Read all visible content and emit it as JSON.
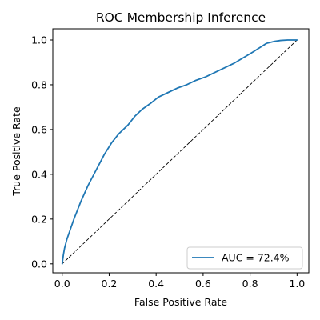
{
  "chart_data": {
    "type": "line",
    "title": "ROC Membership Inference",
    "xlabel": "False Positive Rate",
    "ylabel": "True Positive Rate",
    "xlim": [
      -0.04,
      1.05
    ],
    "ylim": [
      -0.04,
      1.05
    ],
    "xticks": [
      0.0,
      0.2,
      0.4,
      0.6,
      0.8,
      1.0
    ],
    "xtick_labels": [
      "0.0",
      "0.2",
      "0.4",
      "0.6",
      "0.8",
      "1.0"
    ],
    "yticks": [
      0.0,
      0.2,
      0.4,
      0.6,
      0.8,
      1.0
    ],
    "ytick_labels": [
      "0.0",
      "0.2",
      "0.4",
      "0.6",
      "0.8",
      "1.0"
    ],
    "grid": false,
    "legend_position": "lower-right",
    "series": [
      {
        "name": "AUC = 72.4%",
        "color": "#1f77b4",
        "style": "solid",
        "x": [
          0.0,
          0.005,
          0.01,
          0.02,
          0.03,
          0.05,
          0.08,
          0.11,
          0.15,
          0.18,
          0.21,
          0.24,
          0.28,
          0.31,
          0.34,
          0.38,
          0.41,
          0.45,
          0.49,
          0.53,
          0.57,
          0.61,
          0.65,
          0.69,
          0.73,
          0.77,
          0.81,
          0.84,
          0.87,
          0.9,
          0.93,
          0.96,
          0.98,
          1.0
        ],
        "y": [
          0.0,
          0.04,
          0.07,
          0.11,
          0.14,
          0.2,
          0.28,
          0.35,
          0.43,
          0.49,
          0.54,
          0.58,
          0.62,
          0.66,
          0.69,
          0.72,
          0.745,
          0.765,
          0.785,
          0.8,
          0.82,
          0.835,
          0.855,
          0.875,
          0.895,
          0.92,
          0.945,
          0.965,
          0.985,
          0.993,
          0.998,
          1.0,
          1.0,
          1.0
        ]
      },
      {
        "name": "",
        "color": "#000000",
        "style": "dashed",
        "x": [
          0.0,
          1.0
        ],
        "y": [
          0.0,
          1.0
        ]
      }
    ]
  }
}
